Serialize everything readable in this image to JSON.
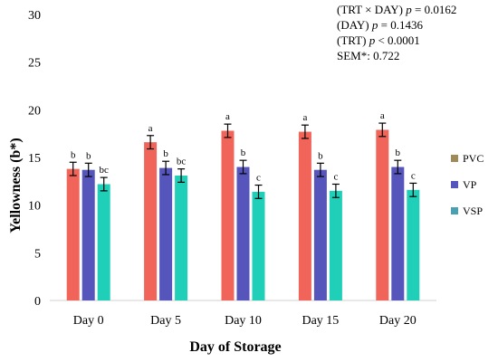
{
  "chart_data": {
    "type": "bar",
    "title": "",
    "xlabel": "Day of Storage",
    "ylabel": "Yellowness (b*)",
    "ylim": [
      0,
      30
    ],
    "yticks": [
      0,
      5,
      10,
      15,
      20,
      25,
      30
    ],
    "categories": [
      "Day 0",
      "Day 5",
      "Day 10",
      "Day 15",
      "Day 20"
    ],
    "series": [
      {
        "name": "PVC",
        "color": "#f0645a",
        "legend_color": "#a08a5a",
        "values": [
          13.8,
          16.6,
          17.8,
          17.7,
          17.9
        ],
        "errors": [
          0.7,
          0.7,
          0.7,
          0.7,
          0.7
        ],
        "labels": [
          "b",
          "a",
          "a",
          "a",
          "a"
        ]
      },
      {
        "name": "VP",
        "color": "#5555bb",
        "legend_color": "#5555bb",
        "values": [
          13.7,
          13.9,
          14.0,
          13.7,
          14.0
        ],
        "errors": [
          0.7,
          0.7,
          0.7,
          0.7,
          0.7
        ],
        "labels": [
          "b",
          "b",
          "b",
          "b",
          "b"
        ]
      },
      {
        "name": "VSP",
        "color": "#1fcfb8",
        "legend_color": "#4aa0b0",
        "values": [
          12.2,
          13.1,
          11.4,
          11.5,
          11.6
        ],
        "errors": [
          0.7,
          0.7,
          0.7,
          0.7,
          0.7
        ],
        "labels": [
          "bc",
          "bc",
          "c",
          "c",
          "c"
        ]
      }
    ],
    "annotations": {
      "line1_prefix": "(TRT × DAY) ",
      "line1_p": "p",
      "line1_value": " = 0.0162",
      "line2_prefix": "(DAY) ",
      "line2_p": "p",
      "line2_value": " = 0.1436",
      "line3_prefix": "(TRT) ",
      "line3_p": "p",
      "line3_value": " < 0.0001",
      "line4": "SEM*: 0.722"
    },
    "grid": false,
    "legend_position": "right"
  }
}
